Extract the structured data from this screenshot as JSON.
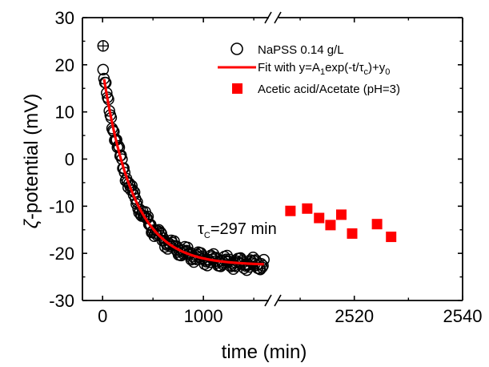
{
  "chart_data": {
    "type": "scatter",
    "xlabel": "time (min)",
    "ylabel_symbol": "ζ",
    "ylabel_rest": "-potential (mV)",
    "ylim": [
      -30,
      30
    ],
    "y_ticks": [
      "30",
      "20",
      "10",
      "0",
      "-10",
      "-20",
      "-30"
    ],
    "x_axis_broken": true,
    "x_segment_left": {
      "xlim": [
        -200,
        1650
      ],
      "ticks": [
        "0",
        "1000"
      ]
    },
    "x_segment_right": {
      "xlim": [
        2506,
        2540
      ],
      "ticks": [
        "2520",
        "2540"
      ]
    },
    "series": [
      {
        "name": "NaPSS 0.14 g/L",
        "marker": "open-circle",
        "color": "#000000",
        "segment": "left",
        "outlier": {
          "x": 5,
          "y": 24
        },
        "x_start": 5,
        "x_end": 1600,
        "n_points": 180,
        "jitter": 1.1
      },
      {
        "name_parts": [
          "Fit with y=A",
          "1",
          "exp(-t/τ",
          "c",
          ")+y",
          "0"
        ],
        "marker": "line",
        "color": "#ff0000",
        "segment": "left",
        "params": {
          "A1": 41.5,
          "tau_c": 297,
          "y0": -22.5
        },
        "x_start": 15,
        "x_end": 1600
      },
      {
        "name": "Acetic acid/Acetate (pH=3)",
        "marker": "filled-square",
        "color": "#ff0000",
        "segment": "right",
        "x": [
          2508.2,
          2511.3,
          2513.5,
          2515.6,
          2517.6,
          2519.6,
          2524.2,
          2526.8
        ],
        "y": [
          -11,
          -10.5,
          -12.5,
          -14,
          -11.8,
          -15.8,
          -13.8,
          -16.5
        ]
      }
    ],
    "annotation": {
      "symbol": "τ",
      "sub": "C",
      "text": "=297 min"
    }
  }
}
